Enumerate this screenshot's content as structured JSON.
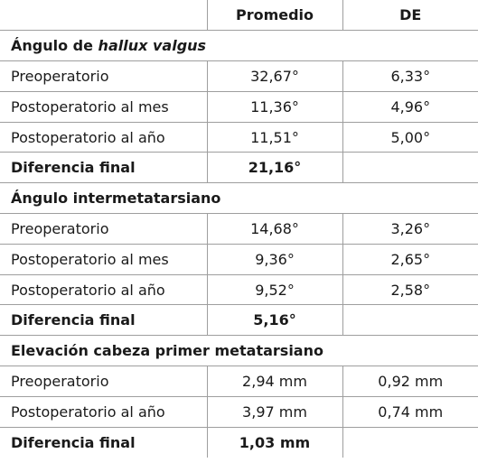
{
  "header": {
    "col1": "",
    "col2": "Promedio",
    "col3": "DE"
  },
  "sections": [
    {
      "title_prefix": "Ángulo de ",
      "title_italic": "hallux valgus",
      "rows": [
        {
          "label": "Preoperatorio",
          "promedio": "32,67°",
          "de": "6,33°"
        },
        {
          "label": "Postoperatorio al mes",
          "promedio": "11,36°",
          "de": "4,96°"
        },
        {
          "label": "Postoperatorio al año",
          "promedio": "11,51°",
          "de": "5,00°"
        }
      ],
      "diff": {
        "label": "Diferencia final",
        "promedio": "21,16°",
        "de": ""
      }
    },
    {
      "title_prefix": "Ángulo intermetatarsiano",
      "title_italic": "",
      "rows": [
        {
          "label": "Preoperatorio",
          "promedio": "14,68°",
          "de": "3,26°"
        },
        {
          "label": "Postoperatorio al mes",
          "promedio": "9,36°",
          "de": "2,65°"
        },
        {
          "label": "Postoperatorio al año",
          "promedio": "9,52°",
          "de": "2,58°"
        }
      ],
      "diff": {
        "label": "Diferencia final",
        "promedio": "5,16°",
        "de": ""
      }
    },
    {
      "title_prefix": "Elevación cabeza primer metatarsiano",
      "title_italic": "",
      "rows": [
        {
          "label": "Preoperatorio",
          "promedio": "2,94 mm",
          "de": "0,92 mm"
        },
        {
          "label": "Postoperatorio al año",
          "promedio": "3,97 mm",
          "de": "0,74 mm"
        }
      ],
      "diff": {
        "label": "Diferencia final",
        "promedio": "1,03 mm",
        "de": ""
      }
    }
  ]
}
